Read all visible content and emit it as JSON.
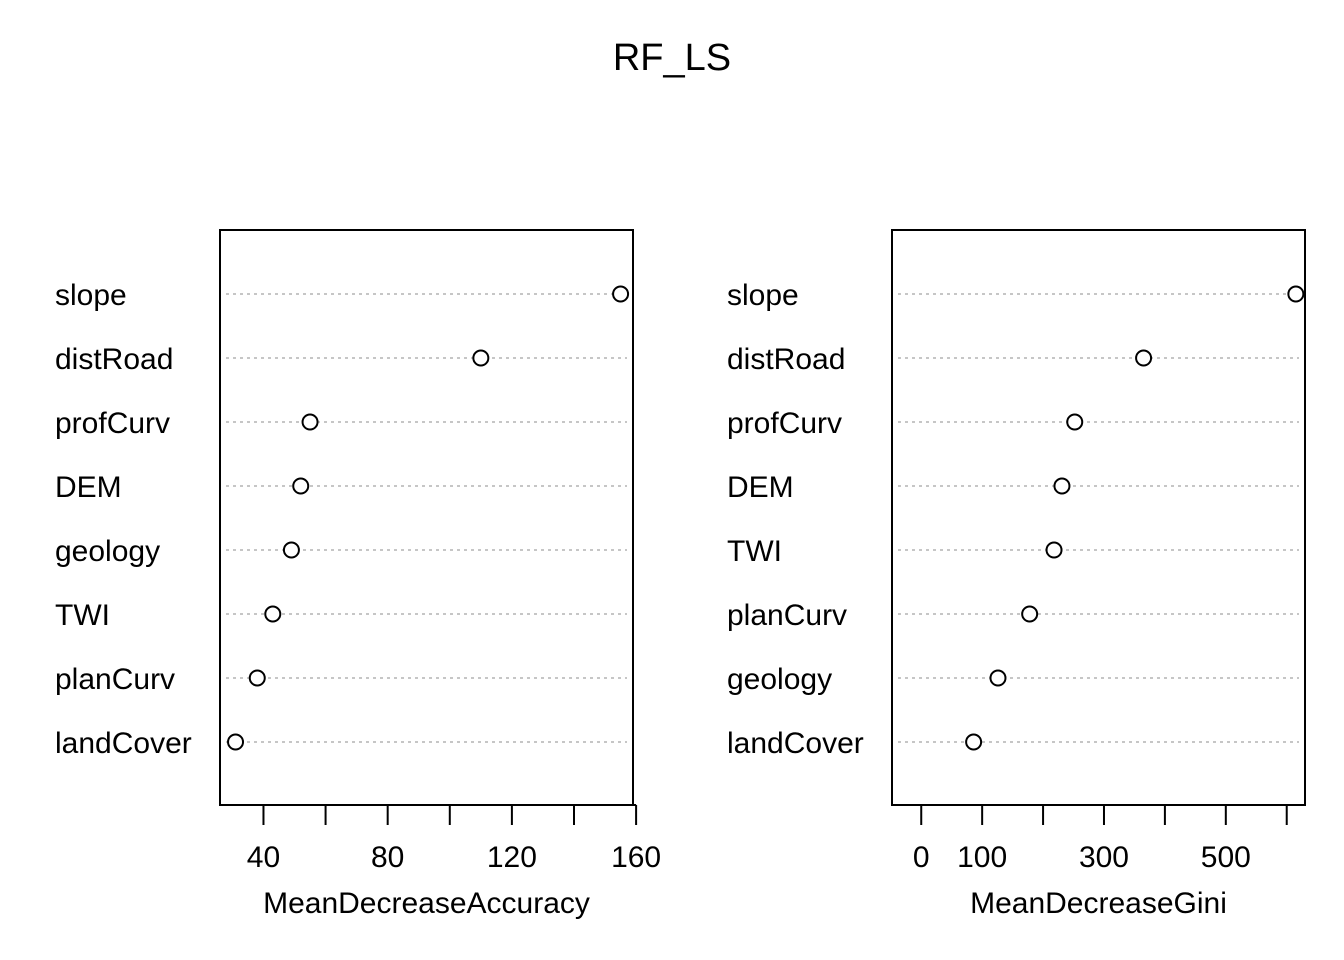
{
  "title": "RF_LS",
  "chart_data": [
    {
      "type": "scatter",
      "style": "dotchart",
      "xlabel": "MeanDecreaseAccuracy",
      "ylabel": "",
      "xlim": [
        26,
        159
      ],
      "xticks": [
        40,
        60,
        80,
        100,
        120,
        140,
        160
      ],
      "xtick_labels": [
        "40",
        "",
        "80",
        "",
        "120",
        "",
        "160"
      ],
      "categories": [
        "slope",
        "distRoad",
        "profCurv",
        "DEM",
        "geology",
        "TWI",
        "planCurv",
        "landCover"
      ],
      "values": [
        155,
        110,
        55,
        52,
        49,
        43,
        38,
        31
      ],
      "grid": "dotted horizontal"
    },
    {
      "type": "scatter",
      "style": "dotchart",
      "xlabel": "MeanDecreaseGini",
      "ylabel": "",
      "xlim": [
        -48,
        630
      ],
      "xticks": [
        0,
        100,
        200,
        300,
        400,
        500,
        600
      ],
      "xtick_labels": [
        "0",
        "100",
        "",
        "300",
        "",
        "500",
        ""
      ],
      "categories": [
        "slope",
        "distRoad",
        "profCurv",
        "DEM",
        "TWI",
        "planCurv",
        "geology",
        "landCover"
      ],
      "values": [
        615,
        365,
        252,
        231,
        218,
        178,
        126,
        86
      ],
      "grid": "dotted horizontal"
    }
  ]
}
